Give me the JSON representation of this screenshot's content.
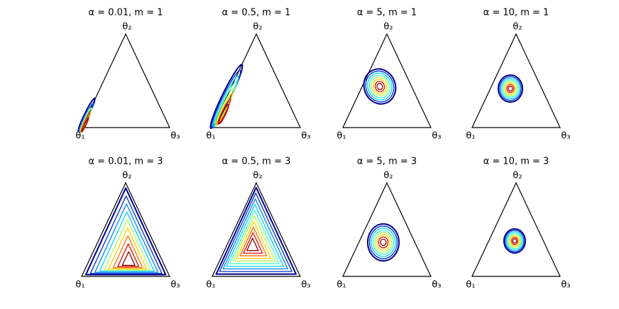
{
  "panels": [
    {
      "title": "α = 0.01, m = 1",
      "vertices": [
        "θ₁",
        "θ₂",
        "θ₃"
      ]
    },
    {
      "title": "α = 0.5, m = 1",
      "vertices": [
        "θ₁",
        "θ₂",
        "θ₃"
      ]
    },
    {
      "title": "α = 5, m = 1",
      "vertices": [
        "θ₁",
        "θ₂",
        "θ₃"
      ]
    },
    {
      "title": "α = 10, m = 1",
      "vertices": [
        "θ₁",
        "θ₂",
        "θ₃"
      ]
    },
    {
      "title": "α = 0.01, m = 3",
      "vertices": [
        "θ₁",
        "θ₂",
        "θ₃"
      ]
    },
    {
      "title": "α = 0.5, m = 3",
      "vertices": [
        "θ₁",
        "θ₂",
        "θ₃"
      ]
    },
    {
      "title": "α = 5, m = 3",
      "vertices": [
        "θ₁",
        "θ₂",
        "θ₃"
      ]
    },
    {
      "title": "α = 10, m = 3",
      "vertices": [
        "θ₁",
        "θ₂",
        "θ₃"
      ]
    }
  ]
}
